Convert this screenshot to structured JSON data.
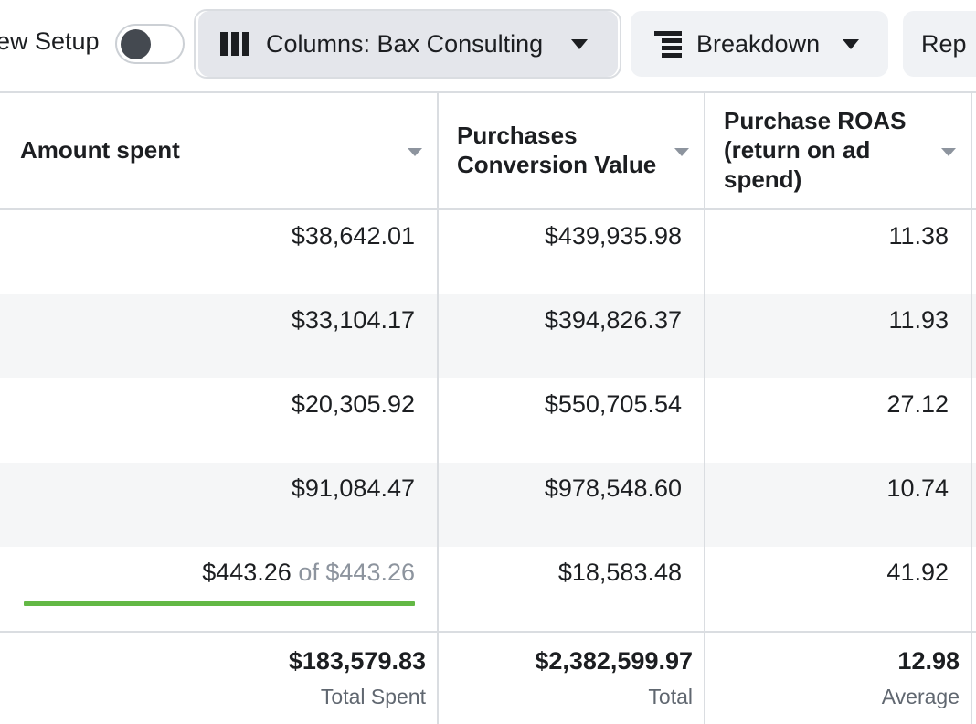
{
  "toolbar": {
    "view_setup_label": "ew Setup",
    "view_setup_on": false,
    "columns_label": "Columns: Bax Consulting",
    "breakdown_label": "Breakdown",
    "reports_label": "Rep"
  },
  "table": {
    "headers": {
      "amount_spent": "Amount spent",
      "purchases_value": "Purchases Conversion Value",
      "roas": "Purchase ROAS (return on ad spend)"
    },
    "rows": [
      {
        "amount_spent": "$38,642.01",
        "purchases_value": "$439,935.98",
        "roas": "11.38"
      },
      {
        "amount_spent": "$33,104.17",
        "purchases_value": "$394,826.37",
        "roas": "11.93"
      },
      {
        "amount_spent": "$20,305.92",
        "purchases_value": "$550,705.54",
        "roas": "27.12"
      },
      {
        "amount_spent": "$91,084.47",
        "purchases_value": "$978,548.60",
        "roas": "10.74"
      }
    ],
    "budget_row": {
      "spent": "$443.26",
      "of_label": "of",
      "budget": "$443.26",
      "budget_fraction": 1.0,
      "purchases_value": "$18,583.48",
      "roas": "41.92"
    },
    "totals": {
      "amount_spent": "$183,579.83",
      "amount_spent_label": "Total Spent",
      "purchases_value": "$2,382,599.97",
      "purchases_value_label": "Total",
      "roas": "12.98",
      "roas_label": "Average"
    }
  },
  "colors": {
    "budget_bar": "#63b845",
    "stripe": "#f5f6f7",
    "button_bg": "#f0f2f5"
  }
}
